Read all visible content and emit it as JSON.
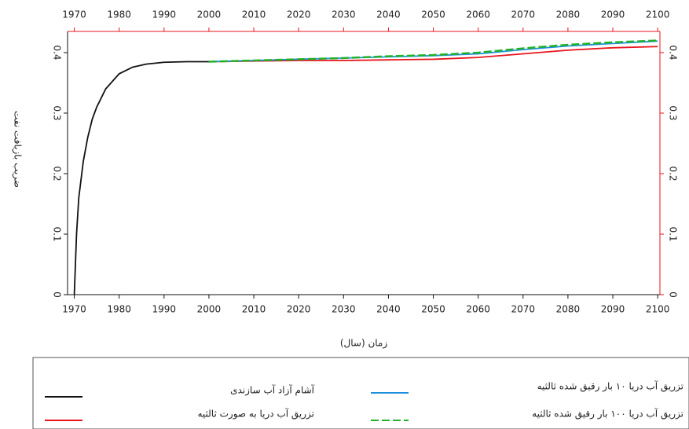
{
  "chart_data": {
    "type": "line",
    "ylabel": "ضریب بازیافت نفت",
    "xlabel": "زمان (سال)",
    "x": [
      1970,
      1970.5,
      1971,
      1972,
      1973,
      1974,
      1975,
      1977,
      1980,
      1983,
      1986,
      1990,
      1995,
      2000,
      2010,
      2020,
      2030,
      2040,
      2050,
      2060,
      2070,
      2080,
      2090,
      2100
    ],
    "series": [
      {
        "name": "آشام آزاد آب سازندی",
        "color": "#111111",
        "style": "solid",
        "values": [
          0,
          0.1,
          0.16,
          0.22,
          0.26,
          0.29,
          0.31,
          0.34,
          0.365,
          0.376,
          0.381,
          0.384,
          0.385,
          0.385,
          null,
          null,
          null,
          null,
          null,
          null,
          null,
          null,
          null,
          null
        ]
      },
      {
        "name": "تزریق آب دریا به صورت ثالثیه",
        "color": "#e8141c",
        "style": "solid",
        "values": [
          null,
          null,
          null,
          null,
          null,
          null,
          null,
          null,
          null,
          null,
          null,
          null,
          null,
          0.385,
          0.386,
          0.387,
          0.387,
          0.388,
          0.389,
          0.392,
          0.398,
          0.404,
          0.408,
          0.41
        ]
      },
      {
        "name": "تزریق آب دریا ۱۰ بار رقیق شده ثالثیه",
        "color": "#1e8fe0",
        "style": "solid",
        "values": [
          null,
          null,
          null,
          null,
          null,
          null,
          null,
          null,
          null,
          null,
          null,
          null,
          null,
          0.385,
          0.387,
          0.389,
          0.391,
          0.393,
          0.395,
          0.398,
          0.405,
          0.411,
          0.415,
          0.419
        ]
      },
      {
        "name": "تزریق آب دریا ۱۰۰ بار رقیق شده ثالثیه",
        "color": "#22b22a",
        "style": "dashed",
        "values": [
          null,
          null,
          null,
          null,
          null,
          null,
          null,
          null,
          null,
          null,
          null,
          null,
          null,
          0.385,
          0.387,
          0.389,
          0.391,
          0.394,
          0.396,
          0.4,
          0.407,
          0.413,
          0.417,
          0.42
        ]
      }
    ],
    "xlim": [
      1968.5,
      2100.5
    ],
    "xticks": [
      1970,
      1980,
      1990,
      2000,
      2010,
      2020,
      2030,
      2040,
      2050,
      2060,
      2070,
      2080,
      2090,
      2100
    ],
    "ylim": [
      0,
      0.435
    ],
    "yticks": [
      0,
      0.1,
      0.2,
      0.3,
      0.4
    ]
  }
}
